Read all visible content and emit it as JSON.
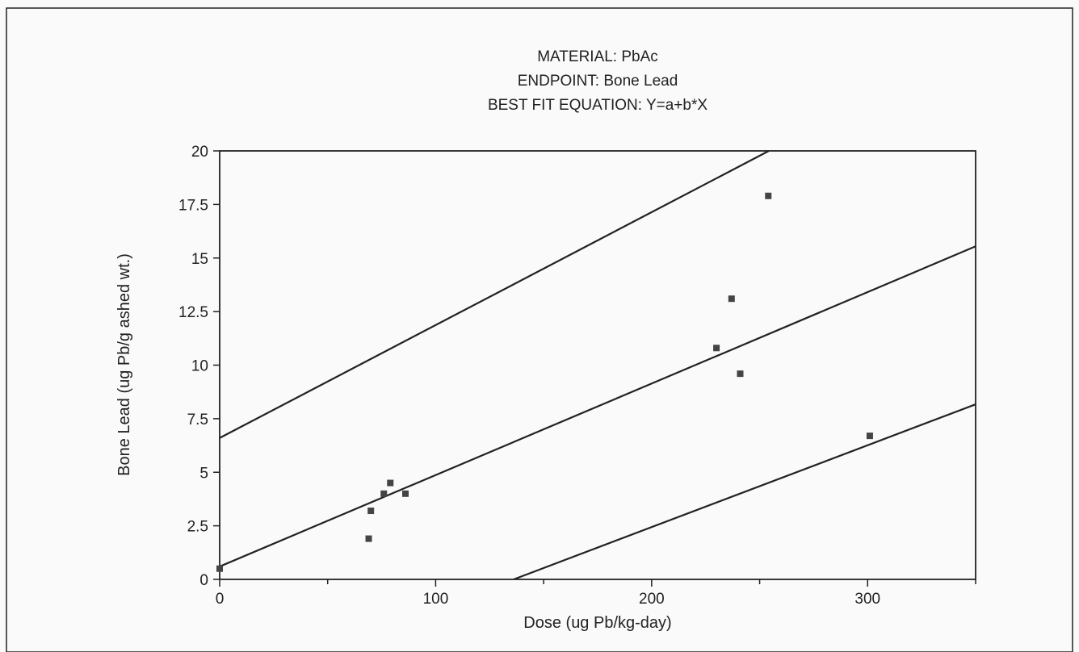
{
  "chart_data": {
    "type": "scatter",
    "title_lines": [
      "MATERIAL:  PbAc",
      "ENDPOINT:  Bone Lead",
      "BEST FIT EQUATION:  Y=a+b*X"
    ],
    "xlabel": "Dose (ug Pb/kg-day)",
    "ylabel": "Bone Lead (ug Pb/g ashed wt.)",
    "xlim": [
      0,
      350
    ],
    "ylim": [
      0,
      20
    ],
    "xticks": [
      0,
      100,
      200,
      300
    ],
    "xtick_labels": [
      "0",
      "100",
      "200",
      "300"
    ],
    "yticks": [
      0,
      2.5,
      5,
      7.5,
      10,
      12.5,
      15,
      17.5,
      20
    ],
    "ytick_labels": [
      "0",
      "2.5",
      "5",
      "7.5",
      "10",
      "12.5",
      "15",
      "17.5",
      "20"
    ],
    "grid": false,
    "legend": "none",
    "points": [
      {
        "x": 0,
        "y": 0.5
      },
      {
        "x": 69,
        "y": 1.9
      },
      {
        "x": 70,
        "y": 3.2
      },
      {
        "x": 76,
        "y": 4.0
      },
      {
        "x": 79,
        "y": 4.5
      },
      {
        "x": 86,
        "y": 4.0
      },
      {
        "x": 230,
        "y": 10.8
      },
      {
        "x": 237,
        "y": 13.1
      },
      {
        "x": 241,
        "y": 9.6
      },
      {
        "x": 254,
        "y": 17.9
      },
      {
        "x": 301,
        "y": 6.7
      }
    ],
    "lines": [
      {
        "name": "best-fit-line",
        "a": 0.6,
        "b": 0.0427
      },
      {
        "name": "upper-bound-line",
        "a": 6.6,
        "b": 0.0527
      },
      {
        "name": "lower-bound-line",
        "a": -5.2,
        "b": 0.0382
      }
    ],
    "colors": {
      "ink": "#222222",
      "marker": "#444444"
    }
  }
}
